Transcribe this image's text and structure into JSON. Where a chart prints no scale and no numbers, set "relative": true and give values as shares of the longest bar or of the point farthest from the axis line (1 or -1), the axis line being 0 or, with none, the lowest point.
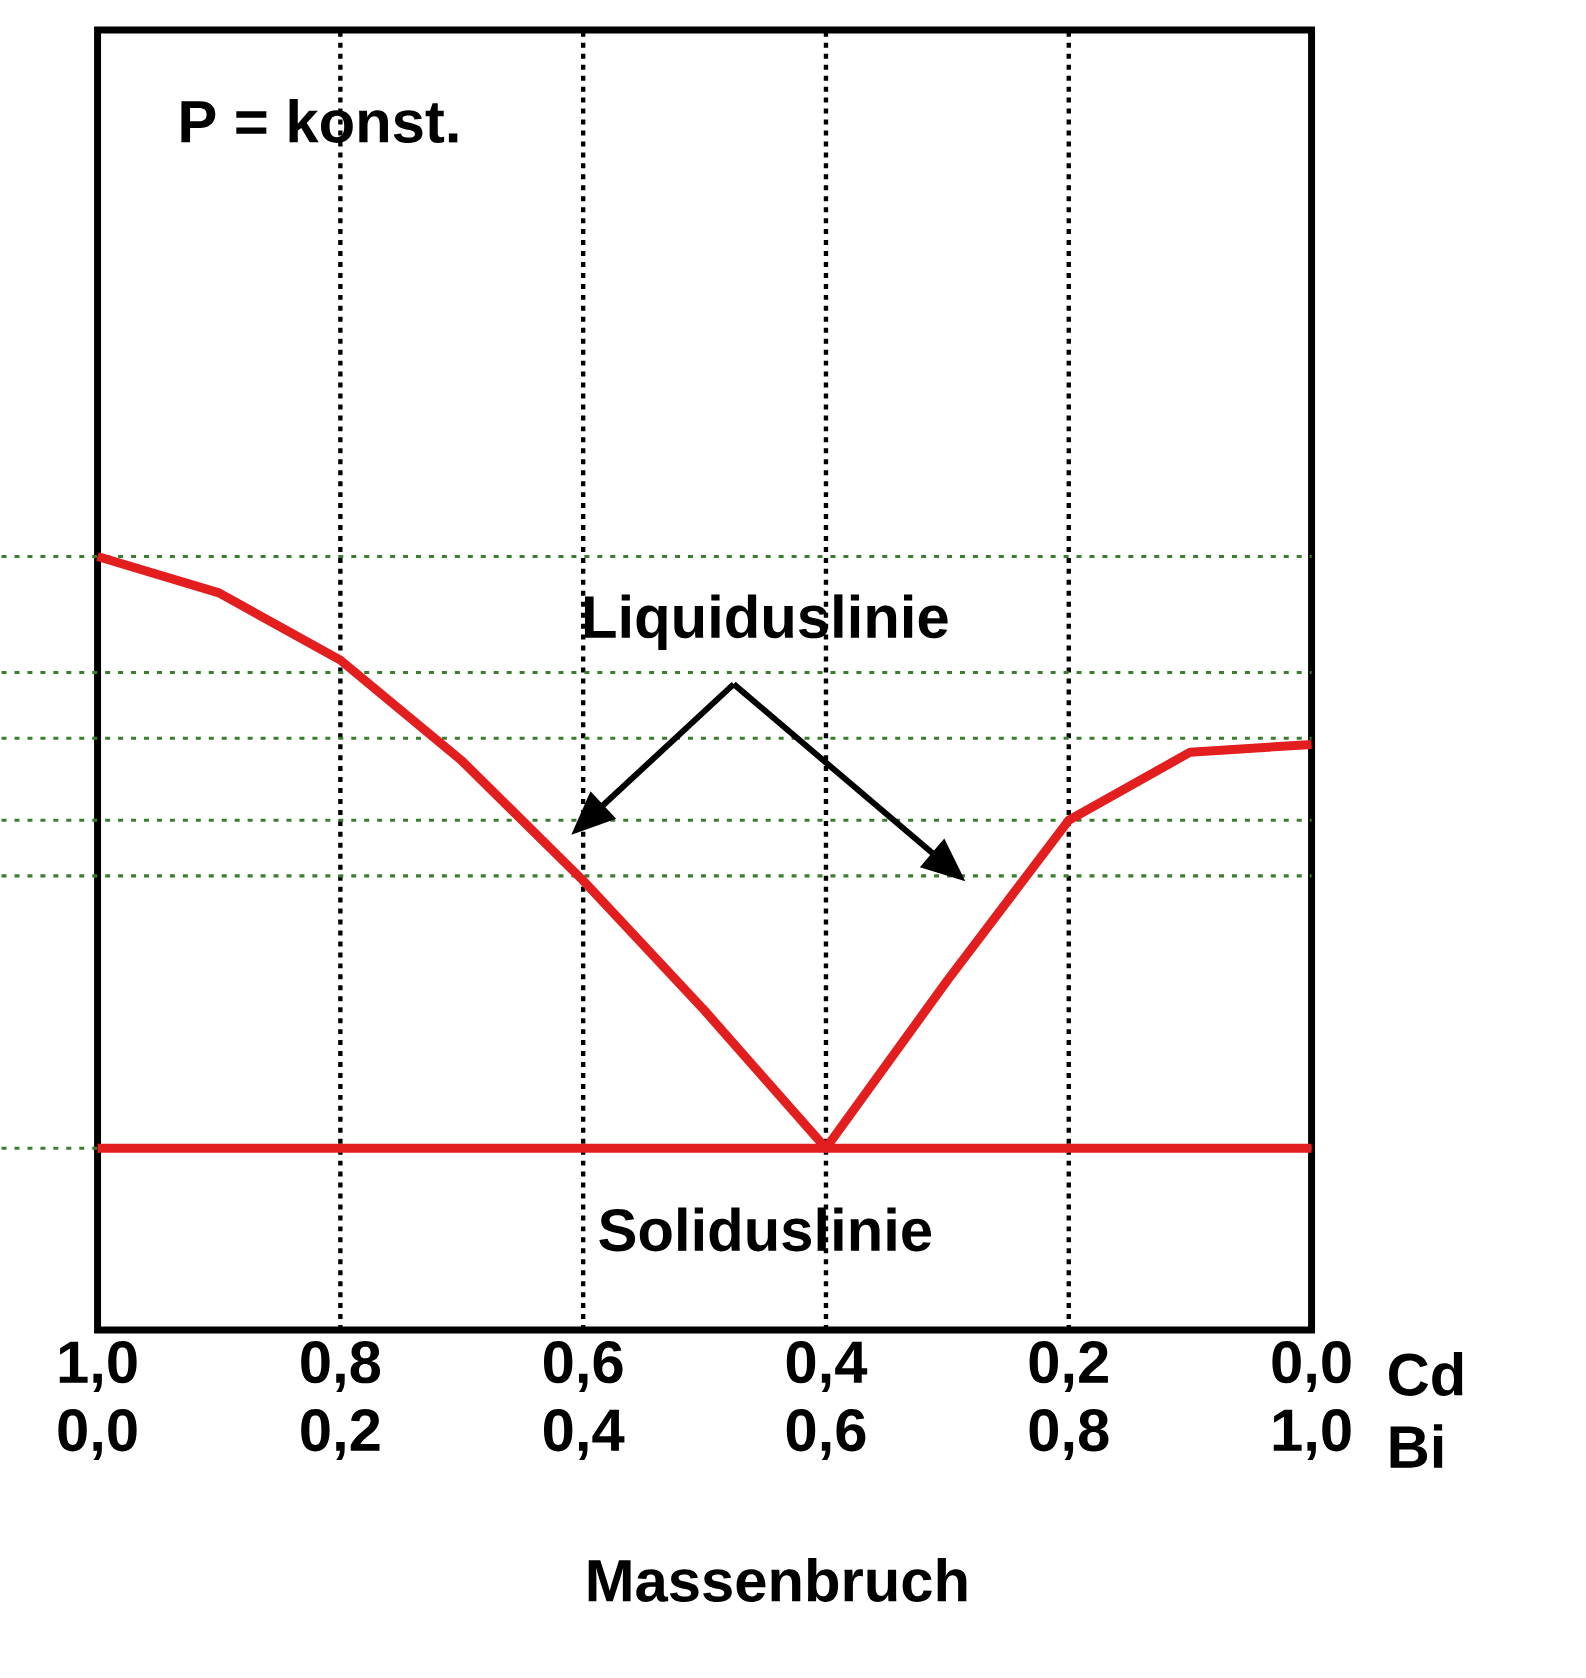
{
  "chart_data": {
    "type": "line",
    "relative": true,
    "xlabel": "Massenbruch",
    "xlim": [
      1,
      0
    ],
    "xticks": [
      {
        "value": 1,
        "label": "1,0"
      },
      {
        "value": 0.8,
        "label": "0,8"
      },
      {
        "value": 0.6,
        "label": "0,6"
      },
      {
        "value": 0.4,
        "label": "0,4"
      },
      {
        "value": 0.2,
        "label": "0,2"
      },
      {
        "value": 0,
        "label": "0,0"
      }
    ],
    "x2lim": [
      0,
      1
    ],
    "x2ticks": [
      {
        "value": 0,
        "label": "0,0"
      },
      {
        "value": 0.2,
        "label": "0,2"
      },
      {
        "value": 0.4,
        "label": "0,4"
      },
      {
        "value": 0.6,
        "label": "0,6"
      },
      {
        "value": 0.8,
        "label": "0,8"
      },
      {
        "value": 1,
        "label": "1,0"
      }
    ],
    "grid": "x",
    "marker": "none",
    "line_style": "solid",
    "x": [
      1,
      0.9,
      0.8,
      0.7,
      0.6,
      0.5,
      0.4,
      0.3,
      0.2,
      0.1,
      0
    ],
    "series": [
      {
        "name": "Liquiduslinie",
        "color": "#e31e1e",
        "values": [
          1.0,
          0.953,
          0.866,
          0.736,
          0.581,
          0.413,
          0.235,
          0.452,
          0.659,
          0.747,
          0.757
        ]
      },
      {
        "name": "Soliduslinie",
        "color": "#e31e1e",
        "values": [
          0.235,
          0.235,
          0.235,
          0.235,
          0.235,
          0.235,
          0.235,
          0.235,
          0.235,
          0.235,
          0.235
        ]
      }
    ],
    "ref_lines": [
      {
        "axis": "y",
        "value": 1.0,
        "color": "#3a7d2c",
        "line_style": "dotted"
      },
      {
        "axis": "y",
        "value": 0.85,
        "color": "#3a7d2c",
        "line_style": "dotted"
      },
      {
        "axis": "y",
        "value": 0.765,
        "color": "#3a7d2c",
        "line_style": "dotted"
      },
      {
        "axis": "y",
        "value": 0.659,
        "color": "#3a7d2c",
        "line_style": "dotted"
      },
      {
        "axis": "y",
        "value": 0.587,
        "color": "#3a7d2c",
        "line_style": "dotted"
      },
      {
        "axis": "y",
        "value": 0.235,
        "color": "#3a7d2c",
        "line_style": "dotted"
      }
    ],
    "annotations": [
      "P = konst.",
      "Cd",
      "Bi"
    ]
  }
}
